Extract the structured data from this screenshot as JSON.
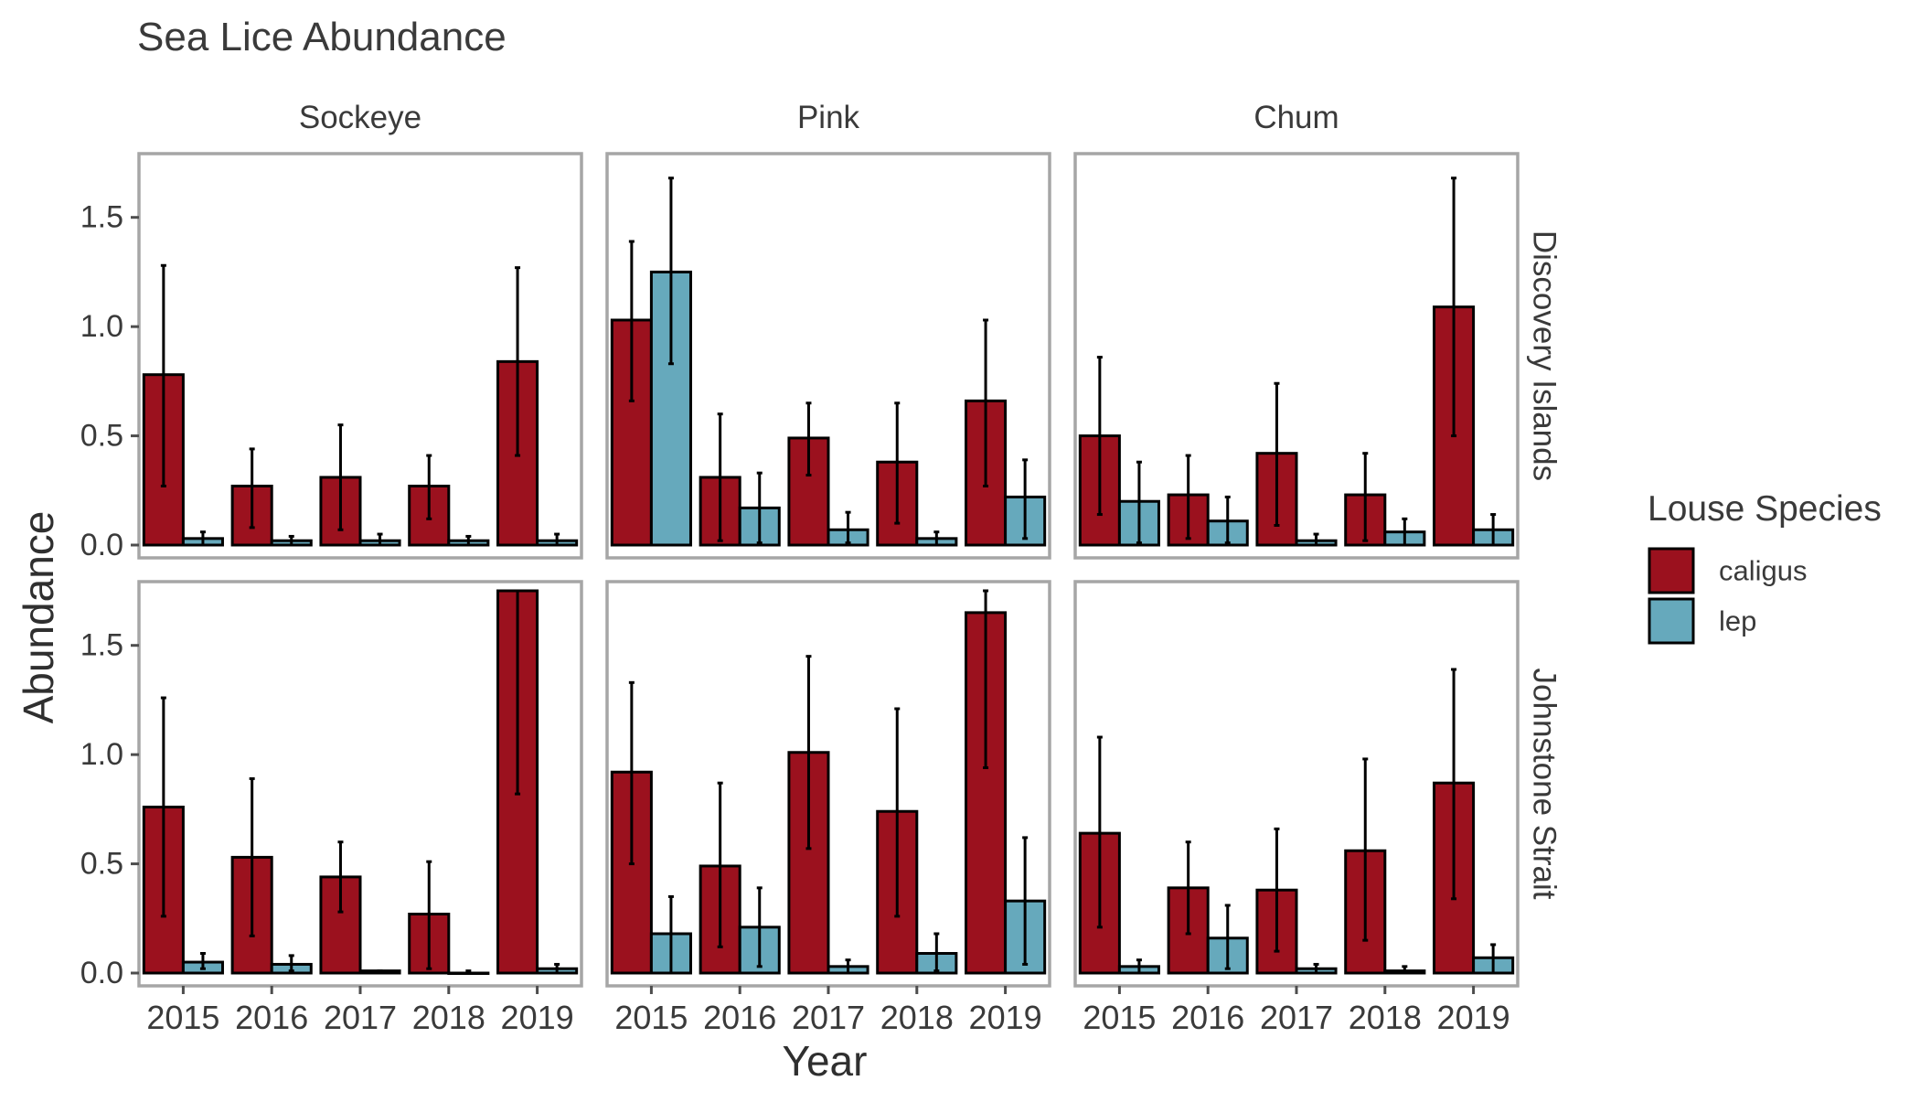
{
  "chart_data": {
    "type": "bar",
    "title": "Sea Lice Abundance",
    "xlabel": "Year",
    "ylabel": "Abundance",
    "ylim": [
      0,
      1.75
    ],
    "yticks": [
      "0.0",
      "0.5",
      "1.0",
      "1.5"
    ],
    "categories": [
      "2015",
      "2016",
      "2017",
      "2018",
      "2019"
    ],
    "columns": [
      "Sockeye",
      "Pink",
      "Chum"
    ],
    "rows": [
      "Discovery Islands",
      "Johnstone Strait"
    ],
    "legend": {
      "title": "Louse Species",
      "position": "right",
      "entries": [
        {
          "name": "caligus",
          "color": "#9b111e"
        },
        {
          "name": "lep",
          "color": "#66a9bc"
        }
      ]
    },
    "grid": false,
    "error_bars": true,
    "panels": [
      {
        "row": "Discovery Islands",
        "column": "Sockeye",
        "caligus": {
          "values": [
            0.78,
            0.27,
            0.31,
            0.27,
            0.84
          ],
          "lower": [
            0.27,
            0.08,
            0.07,
            0.12,
            0.41
          ],
          "upper": [
            1.28,
            0.44,
            0.55,
            0.41,
            1.27
          ]
        },
        "lep": {
          "values": [
            0.03,
            0.02,
            0.02,
            0.02,
            0.02
          ],
          "lower": [
            0.0,
            0.0,
            0.0,
            0.0,
            0.0
          ],
          "upper": [
            0.06,
            0.04,
            0.05,
            0.04,
            0.05
          ]
        }
      },
      {
        "row": "Discovery Islands",
        "column": "Pink",
        "caligus": {
          "values": [
            1.03,
            0.31,
            0.49,
            0.38,
            0.66
          ],
          "lower": [
            0.66,
            0.02,
            0.32,
            0.1,
            0.27
          ],
          "upper": [
            1.39,
            0.6,
            0.65,
            0.65,
            1.03
          ]
        },
        "lep": {
          "values": [
            1.25,
            0.17,
            0.07,
            0.03,
            0.22
          ],
          "lower": [
            0.83,
            0.01,
            0.01,
            0.0,
            0.03
          ],
          "upper": [
            1.68,
            0.33,
            0.15,
            0.06,
            0.39
          ]
        }
      },
      {
        "row": "Discovery Islands",
        "column": "Chum",
        "caligus": {
          "values": [
            0.5,
            0.23,
            0.42,
            0.23,
            1.09
          ],
          "lower": [
            0.14,
            0.03,
            0.09,
            0.02,
            0.5
          ],
          "upper": [
            0.86,
            0.41,
            0.74,
            0.42,
            1.68
          ]
        },
        "lep": {
          "values": [
            0.2,
            0.11,
            0.02,
            0.06,
            0.07
          ],
          "lower": [
            0.01,
            0.01,
            0.0,
            0.0,
            0.0
          ],
          "upper": [
            0.38,
            0.22,
            0.05,
            0.12,
            0.14
          ]
        }
      },
      {
        "row": "Johnstone Strait",
        "column": "Sockeye",
        "caligus": {
          "values": [
            0.76,
            0.53,
            0.44,
            0.27,
            1.77
          ],
          "lower": [
            0.26,
            0.17,
            0.28,
            0.02,
            0.82
          ],
          "upper": [
            1.26,
            0.89,
            0.6,
            0.51,
            1.77
          ]
        },
        "lep": {
          "values": [
            0.05,
            0.04,
            0.01,
            0.0,
            0.02
          ],
          "lower": [
            0.02,
            0.01,
            0.0,
            0.0,
            0.0
          ],
          "upper": [
            0.09,
            0.08,
            0.01,
            0.01,
            0.04
          ]
        }
      },
      {
        "row": "Johnstone Strait",
        "column": "Pink",
        "caligus": {
          "values": [
            0.92,
            0.49,
            1.01,
            0.74,
            1.65
          ],
          "lower": [
            0.5,
            0.12,
            0.57,
            0.26,
            0.94
          ],
          "upper": [
            1.33,
            0.87,
            1.45,
            1.21,
            1.77
          ]
        },
        "lep": {
          "values": [
            0.18,
            0.21,
            0.03,
            0.09,
            0.33
          ],
          "lower": [
            0.0,
            0.03,
            0.0,
            0.01,
            0.04
          ],
          "upper": [
            0.35,
            0.39,
            0.06,
            0.18,
            0.62
          ]
        }
      },
      {
        "row": "Johnstone Strait",
        "column": "Chum",
        "caligus": {
          "values": [
            0.64,
            0.39,
            0.38,
            0.56,
            0.87
          ],
          "lower": [
            0.21,
            0.18,
            0.1,
            0.15,
            0.34
          ],
          "upper": [
            1.08,
            0.6,
            0.66,
            0.98,
            1.39
          ]
        },
        "lep": {
          "values": [
            0.03,
            0.16,
            0.02,
            0.01,
            0.07
          ],
          "lower": [
            0.0,
            0.02,
            0.0,
            0.0,
            0.0
          ],
          "upper": [
            0.06,
            0.31,
            0.04,
            0.03,
            0.13
          ]
        }
      }
    ]
  }
}
